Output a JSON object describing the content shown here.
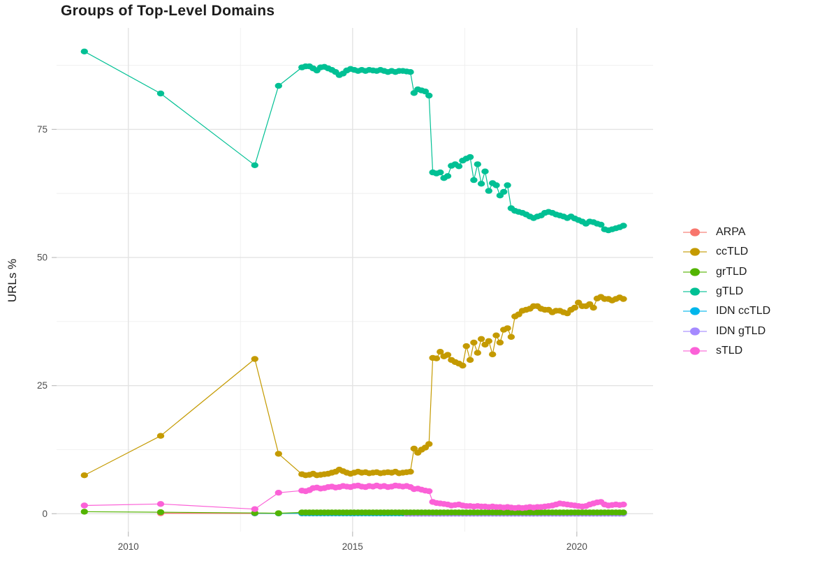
{
  "chart_data": {
    "type": "line",
    "title": "Groups of Top-Level Domains",
    "xlabel": "",
    "ylabel": "URLs %",
    "xlim": [
      2008.4,
      2021.7
    ],
    "ylim": [
      -3.5,
      94.8
    ],
    "grid": true,
    "legend_position": "right",
    "x_ticks": [
      {
        "value": 2010,
        "label": "2010"
      },
      {
        "value": 2015,
        "label": "2015"
      },
      {
        "value": 2020,
        "label": "2020"
      }
    ],
    "y_ticks": [
      {
        "value": 0,
        "label": "0"
      },
      {
        "value": 25,
        "label": "25"
      },
      {
        "value": 50,
        "label": "50"
      },
      {
        "value": 75,
        "label": "75"
      }
    ],
    "x_minor": [
      2012.5,
      2017.5
    ],
    "y_minor": [
      12.5,
      37.5,
      62.5,
      87.5
    ],
    "colors": {
      "grid_major": "#e3e3e3",
      "grid_minor": "#efefef",
      "tick": "#bdbdbd",
      "axis_text": "#4d4d4d",
      "title_text": "#1c1c1c"
    },
    "series": [
      {
        "name": "ARPA",
        "color": "#F8766D",
        "z": 0,
        "sparse": [
          [
            2010.72,
            0.1
          ],
          [
            2012.82,
            0.06
          ]
        ],
        "dense": {
          "x0": 2013.871,
          "dx": 0.08333,
          "n": 87,
          "const": 0.05
        }
      },
      {
        "name": "ccTLD",
        "color": "#C49A00",
        "z": 4,
        "sparse": [
          [
            2009.02,
            7.5
          ],
          [
            2010.72,
            15.2
          ],
          [
            2012.82,
            30.2
          ],
          [
            2013.35,
            11.7
          ]
        ],
        "dense": {
          "x0": 2013.871,
          "dx": 0.08333,
          "y": [
            7.7,
            7.5,
            7.6,
            7.8,
            7.5,
            7.6,
            7.7,
            7.8,
            8.0,
            8.2,
            8.6,
            8.3,
            8.0,
            7.8,
            8.0,
            8.2,
            8.0,
            8.1,
            7.9,
            8.0,
            8.1,
            7.9,
            8.0,
            8.1,
            8.0,
            8.2,
            7.9,
            8.0,
            8.1,
            8.2,
            12.7,
            11.9,
            12.5,
            12.9,
            13.6,
            30.4,
            30.3,
            31.6,
            30.7,
            31.0,
            30.0,
            29.6,
            29.3,
            28.9,
            32.7,
            30.0,
            33.4,
            31.4,
            34.1,
            33.0,
            33.7,
            31.1,
            34.8,
            33.4,
            35.9,
            36.2,
            34.5,
            38.5,
            38.9,
            39.6,
            39.8,
            40.0,
            40.5,
            40.5,
            40.0,
            39.8,
            39.8,
            39.3,
            39.6,
            39.6,
            39.3,
            39.1,
            39.8,
            40.2,
            41.2,
            40.5,
            40.5,
            40.9,
            40.2,
            42.0,
            42.3,
            41.9,
            41.9,
            41.6,
            41.9,
            42.2,
            41.9
          ]
        }
      },
      {
        "name": "grTLD",
        "color": "#53B400",
        "z": 3,
        "sparse": [
          [
            2009.02,
            0.4
          ],
          [
            2010.72,
            0.3
          ],
          [
            2012.82,
            0.15
          ],
          [
            2013.35,
            0.1
          ]
        ],
        "dense": {
          "x0": 2013.871,
          "dx": 0.08333,
          "n": 87,
          "const": 0.25
        }
      },
      {
        "name": "gTLD",
        "color": "#00C094",
        "z": 5,
        "sparse": [
          [
            2009.02,
            90.2
          ],
          [
            2010.72,
            82.0
          ],
          [
            2012.82,
            68.0
          ],
          [
            2013.35,
            83.5
          ]
        ],
        "dense": {
          "x0": 2013.871,
          "dx": 0.08333,
          "y": [
            87.1,
            87.3,
            87.3,
            86.9,
            86.5,
            87.1,
            87.2,
            86.9,
            86.6,
            86.2,
            85.6,
            85.9,
            86.5,
            86.8,
            86.6,
            86.4,
            86.6,
            86.4,
            86.6,
            86.5,
            86.4,
            86.6,
            86.4,
            86.2,
            86.4,
            86.2,
            86.4,
            86.4,
            86.3,
            86.2,
            82.1,
            82.8,
            82.6,
            82.4,
            81.6,
            66.6,
            66.4,
            66.6,
            65.5,
            65.9,
            67.9,
            68.2,
            67.8,
            68.9,
            69.3,
            69.6,
            65.1,
            68.2,
            64.4,
            66.8,
            63.0,
            64.5,
            64.1,
            62.1,
            62.8,
            64.1,
            59.6,
            59.1,
            58.9,
            58.7,
            58.4,
            58.0,
            57.7,
            58.0,
            58.2,
            58.7,
            58.9,
            58.7,
            58.4,
            58.2,
            58.0,
            57.7,
            58.0,
            57.6,
            57.3,
            57.0,
            56.6,
            57.0,
            56.9,
            56.6,
            56.4,
            55.5,
            55.3,
            55.5,
            55.7,
            55.9,
            56.2
          ]
        }
      },
      {
        "name": "IDN ccTLD",
        "color": "#00B6EB",
        "z": 1,
        "sparse": [
          [
            2012.82,
            0.08
          ],
          [
            2013.35,
            0.06
          ]
        ],
        "dense": {
          "x0": 2013.871,
          "dx": 0.08333,
          "n": 87,
          "const": 0.07
        }
      },
      {
        "name": "IDN gTLD",
        "color": "#A58AFF",
        "z": 2,
        "sparse": [],
        "dense": {
          "x0": 2016.204,
          "dx": 0.08333,
          "n": 59,
          "const": 0.0
        }
      },
      {
        "name": "sTLD",
        "color": "#FB61D7",
        "z": 6,
        "sparse": [
          [
            2009.02,
            1.6
          ],
          [
            2010.72,
            1.9
          ],
          [
            2012.82,
            0.9
          ],
          [
            2013.35,
            4.1
          ]
        ],
        "dense": {
          "x0": 2013.871,
          "dx": 0.08333,
          "y": [
            4.5,
            4.4,
            4.6,
            5.0,
            5.1,
            4.9,
            5.0,
            5.2,
            5.3,
            5.1,
            5.2,
            5.4,
            5.3,
            5.2,
            5.4,
            5.5,
            5.3,
            5.2,
            5.4,
            5.3,
            5.5,
            5.3,
            5.4,
            5.2,
            5.3,
            5.5,
            5.4,
            5.3,
            5.4,
            5.2,
            4.8,
            4.9,
            4.7,
            4.5,
            4.4,
            2.3,
            2.1,
            2.0,
            1.9,
            1.8,
            1.6,
            1.7,
            1.8,
            1.6,
            1.5,
            1.5,
            1.4,
            1.5,
            1.4,
            1.4,
            1.3,
            1.4,
            1.3,
            1.3,
            1.2,
            1.3,
            1.2,
            1.1,
            1.2,
            1.1,
            1.2,
            1.3,
            1.2,
            1.3,
            1.3,
            1.4,
            1.5,
            1.6,
            1.8,
            2.0,
            1.9,
            1.8,
            1.7,
            1.6,
            1.5,
            1.4,
            1.5,
            1.8,
            2.0,
            2.2,
            2.3,
            1.8,
            1.6,
            1.7,
            1.8,
            1.7,
            1.8
          ]
        }
      }
    ]
  }
}
